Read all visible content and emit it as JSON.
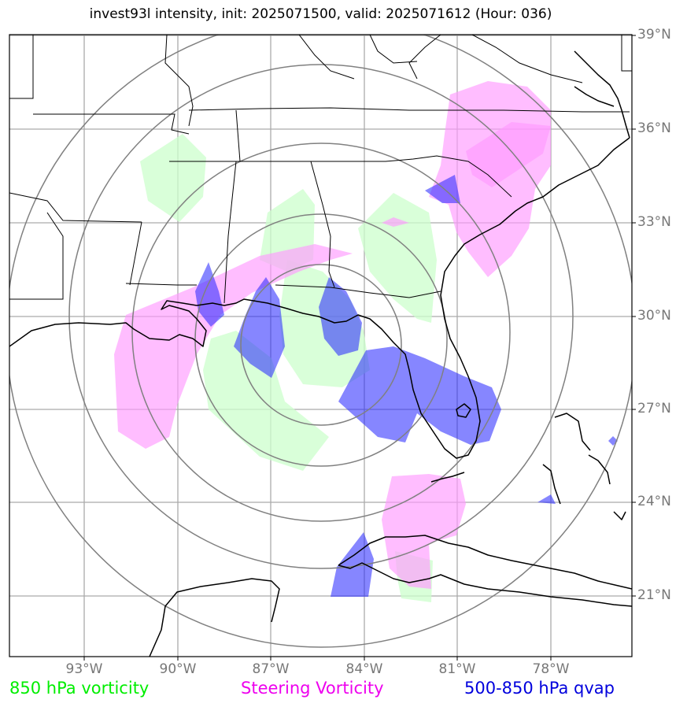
{
  "title": "invest93l intensity, init: 2025071500, valid: 2025071612 (Hour: 036)",
  "lat_labels": [
    "39°N",
    "36°N",
    "33°N",
    "30°N",
    "27°N",
    "24°N",
    "21°N"
  ],
  "lon_labels": [
    "93°W",
    "90°W",
    "87°W",
    "84°W",
    "81°W",
    "78°W"
  ],
  "legend": {
    "vort850": {
      "label": "850 hPa vorticity",
      "color": "#00ee00"
    },
    "steering": {
      "label": "Steering Vorticity",
      "color": "#ee00ee"
    },
    "qvap": {
      "label": "500-850 hPa qvap",
      "color": "#0000dd"
    }
  },
  "colors": {
    "vort850_fill": "#ccffcc",
    "steering_fill": "#ff99ff",
    "qvap_fill": "#2222ff",
    "grid": "#aaaaaa",
    "range_rings": "#808080",
    "coastline": "#000000"
  }
}
